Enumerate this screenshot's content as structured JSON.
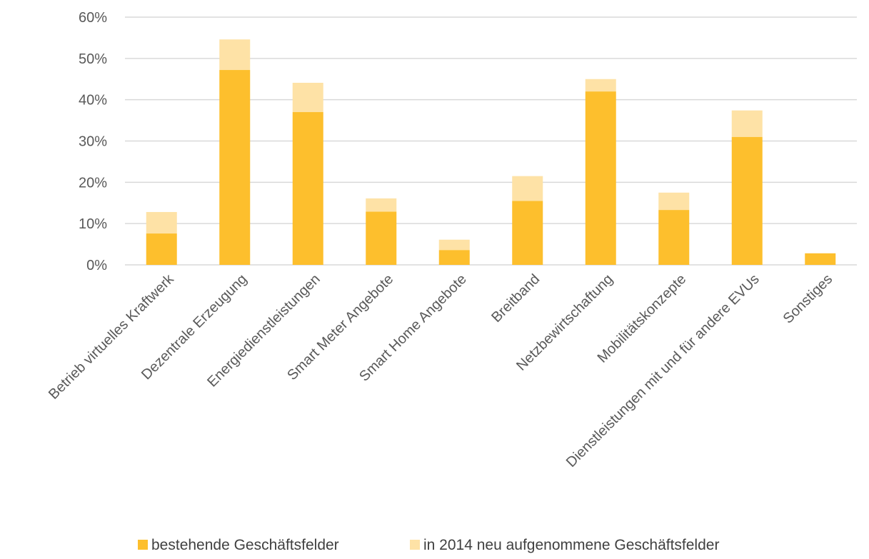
{
  "colors": {
    "series_existing": "#fdbf2d",
    "series_new": "#fee2a6",
    "grid": "#d9d9d9",
    "text": "#595959"
  },
  "chart_data": {
    "type": "bar",
    "stacked": true,
    "title": "",
    "xlabel": "",
    "ylabel": "",
    "ylim": [
      0,
      60
    ],
    "y_unit": "%",
    "yticks": [
      "0%",
      "10%",
      "20%",
      "30%",
      "40%",
      "50%",
      "60%"
    ],
    "grid": true,
    "legend_position": "bottom",
    "categories": [
      "Betrieb virtuelles Kraftwerk",
      "Dezentrale Erzeugung",
      "Energiedienstleistungen",
      "Smart Meter Angebote",
      "Smart Home Angebote",
      "Breitband",
      "Netzbewirtschaftung",
      "Mobilitätskonzepte",
      "Dienstleistungen mit und für andere EVUs",
      "Sonstiges"
    ],
    "series": [
      {
        "name": "bestehende Geschäftsfelder",
        "values": [
          7.6,
          47.2,
          37.0,
          12.9,
          3.6,
          15.5,
          42.0,
          13.3,
          31.0,
          2.8
        ]
      },
      {
        "name": "in 2014 neu aufgenommene Geschäftsfelder",
        "values": [
          5.2,
          7.4,
          7.1,
          3.2,
          2.5,
          6.0,
          3.0,
          4.2,
          6.4,
          0.0
        ]
      }
    ]
  }
}
